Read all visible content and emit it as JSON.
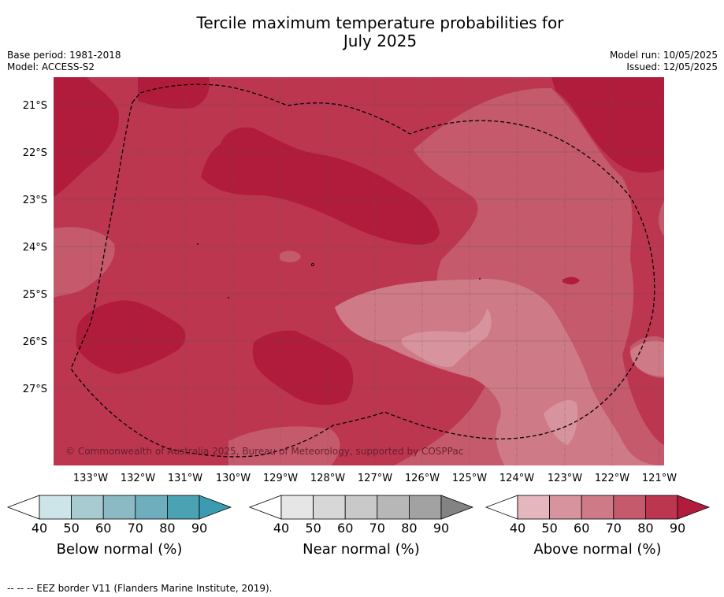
{
  "title_line1": "Tercile maximum temperature probabilities for",
  "title_line2": "July 2025",
  "meta_left": [
    "Base period: 1981-2018",
    "Model: ACCESS-S2"
  ],
  "meta_right": [
    "Model run: 10/05/2025",
    "Issued: 12/05/2025"
  ],
  "lat_labels": [
    "21°S",
    "22°S",
    "23°S",
    "24°S",
    "25°S",
    "26°S",
    "27°S"
  ],
  "lon_labels": [
    "133°W",
    "132°W",
    "131°W",
    "130°W",
    "129°W",
    "128°W",
    "127°W",
    "126°W",
    "125°W",
    "124°W",
    "123°W",
    "122°W",
    "121°W"
  ],
  "copyright": "© Commonwealth of Australia 2025, Bureau of Meteorology, supported by COSPPac",
  "colorbars": [
    {
      "label": "Below normal (%)",
      "ticks": [
        "40",
        "50",
        "60",
        "70",
        "80",
        "90"
      ],
      "colors": [
        "#cde4e9",
        "#a8cbd1",
        "#8bbac5",
        "#6eaebd",
        "#4aa2b3"
      ],
      "over": "#3b9bb0"
    },
    {
      "label": "Near normal (%)",
      "ticks": [
        "40",
        "50",
        "60",
        "70",
        "80",
        "90"
      ],
      "colors": [
        "#e6e6e6",
        "#d7d7d7",
        "#c9c9c9",
        "#b7b7b7",
        "#a2a2a2"
      ],
      "over": "#838383"
    },
    {
      "label": "Above normal (%)",
      "ticks": [
        "40",
        "50",
        "60",
        "70",
        "80",
        "90"
      ],
      "colors": [
        "#e5b6be",
        "#d8949e",
        "#ce7a87",
        "#c45a6c",
        "#bc3650"
      ],
      "over": "#b21c3c"
    }
  ],
  "legend_line": "--  --  -- EEZ border V11 (Flanders Marine Institute, 2019).",
  "colors": {
    "p90": "#b21c3c",
    "p80": "#bc3650",
    "p70": "#c45a6c",
    "p60": "#ce7a87",
    "p50": "#d8949e"
  }
}
